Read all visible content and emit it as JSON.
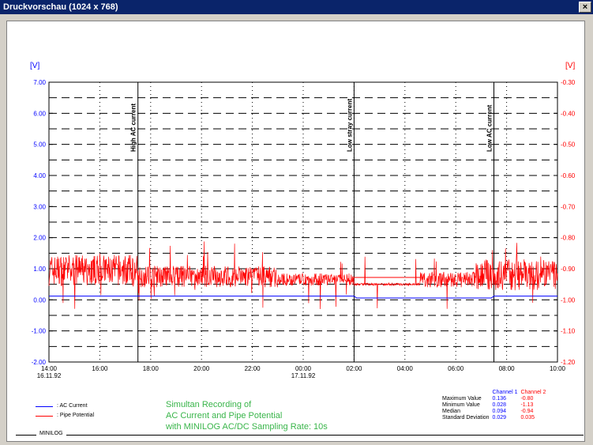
{
  "window": {
    "title": "Druckvorschau (1024 x 768)",
    "close_glyph": "×"
  },
  "chart_data": {
    "type": "line",
    "left_unit": "[V]",
    "right_unit": "[V]",
    "left_ticks": [
      "7.00",
      "6.00",
      "5.00",
      "4.00",
      "3.00",
      "2.00",
      "1.00",
      "0.00",
      "-1.00",
      "-2.00"
    ],
    "right_ticks": [
      "-0.30",
      "-0.40",
      "-0.50",
      "-0.60",
      "-0.70",
      "-0.80",
      "-0.90",
      "-1.00",
      "-1.10",
      "-1.20"
    ],
    "left_ylim": [
      -2,
      7
    ],
    "right_ylim": [
      -1.2,
      -0.3
    ],
    "x_ticks": [
      {
        "time": "14:00",
        "date": "16.11.92"
      },
      {
        "time": "16:00",
        "date": ""
      },
      {
        "time": "18:00",
        "date": ""
      },
      {
        "time": "20:00",
        "date": ""
      },
      {
        "time": "22:00",
        "date": ""
      },
      {
        "time": "00:00",
        "date": "17.11.92"
      },
      {
        "time": "02:00",
        "date": ""
      },
      {
        "time": "04:00",
        "date": ""
      },
      {
        "time": "06:00",
        "date": ""
      },
      {
        "time": "08:00",
        "date": ""
      },
      {
        "time": "10:00",
        "date": ""
      }
    ],
    "annotations": [
      "High AC current",
      "Low stray current",
      "Low AC current"
    ],
    "series": [
      {
        "name": ": AC Current",
        "axis": "left",
        "color": "#0000ff"
      },
      {
        "name": ": Pipe Potential",
        "axis": "right",
        "color": "#ff0000"
      }
    ],
    "caption": [
      "Simultan Recording of",
      "AC Current and Pipe Potential",
      "with MINILOG AC/DC  Sampling Rate: 10s"
    ],
    "stats": {
      "headers": [
        "Channel 1",
        "Channel 2"
      ],
      "rows": [
        {
          "label": "Maximum Value",
          "c1": "0.136",
          "c2": "-0.80"
        },
        {
          "label": "Minimum Value",
          "c1": "0.028",
          "c2": "-1.13"
        },
        {
          "label": "Median",
          "c1": "0.094",
          "c2": "-0.94"
        },
        {
          "label": "Standard Deviation",
          "c1": "0.029",
          "c2": "0.035"
        }
      ]
    },
    "footer": "MINILOG",
    "colors": {
      "left_axis": "#0000ff",
      "right_axis": "#ff0000",
      "caption": "#39b54a"
    }
  }
}
